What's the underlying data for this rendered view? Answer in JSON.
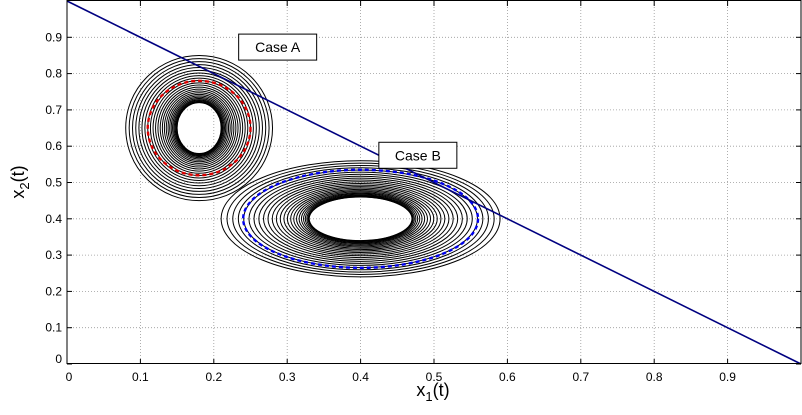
{
  "chart_data": {
    "type": "line",
    "title": "",
    "xlabel": {
      "main": "x",
      "sub": "1",
      "tail": "(t)"
    },
    "ylabel": {
      "main": "x",
      "sub": "2",
      "tail": "(t)"
    },
    "xlim": [
      0,
      1
    ],
    "ylim": [
      0,
      1
    ],
    "xticks": [
      0,
      0.1,
      0.2,
      0.3,
      0.4,
      0.5,
      0.6,
      0.7,
      0.8,
      0.9
    ],
    "yticks": [
      0,
      0.1,
      0.2,
      0.3,
      0.4,
      0.5,
      0.6,
      0.7,
      0.8,
      0.9
    ],
    "xtick_labels": [
      "0",
      "0.1",
      "0.2",
      "0.3",
      "0.4",
      "0.5",
      "0.6",
      "0.7",
      "0.8",
      "0.9"
    ],
    "ytick_labels": [
      "0",
      "0.1",
      "0.2",
      "0.3",
      "0.4",
      "0.5",
      "0.6",
      "0.7",
      "0.8",
      "0.9"
    ],
    "grid": true,
    "constraint_line": {
      "x": [
        0,
        1
      ],
      "y": [
        1,
        0
      ],
      "color": "#000080"
    },
    "contour_sets": [
      {
        "label": "Case A",
        "center": [
          0.18,
          0.65
        ],
        "outer_radii": [
          0.1,
          0.2
        ],
        "inner_radii": [
          0.03,
          0.07
        ],
        "count": 26,
        "highlight": {
          "radii": [
            0.07,
            0.13
          ],
          "color": "#dd0000"
        }
      },
      {
        "label": "Case B",
        "center": [
          0.4,
          0.4
        ],
        "outer_radii": [
          0.19,
          0.16
        ],
        "inner_radii": [
          0.07,
          0.06
        ],
        "count": 26,
        "highlight": {
          "radii": [
            0.16,
            0.135
          ],
          "color": "#0000ee"
        }
      }
    ],
    "annotations": [
      {
        "text": "Case A",
        "x": 0.287,
        "y": 0.873
      },
      {
        "text": "Case B",
        "x": 0.478,
        "y": 0.575
      }
    ]
  }
}
